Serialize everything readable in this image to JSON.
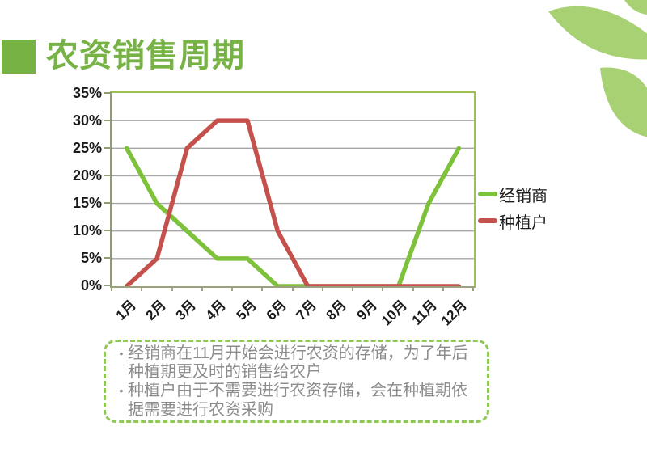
{
  "slide": {
    "title": "农资销售周期",
    "accent_green": "#76B344",
    "leaf_green": "#A8D173"
  },
  "chart_data": {
    "type": "line",
    "title": "",
    "xlabel": "",
    "ylabel": "",
    "categories": [
      "1月",
      "2月",
      "3月",
      "4月",
      "5月",
      "6月",
      "7月",
      "8月",
      "9月",
      "10月",
      "11月",
      "12月"
    ],
    "series": [
      {
        "name": "经销商",
        "color": "#7EC13B",
        "values": [
          25,
          15,
          10,
          5,
          5,
          0,
          0,
          0,
          0,
          0,
          15,
          25
        ]
      },
      {
        "name": "种植户",
        "color": "#C4514C",
        "values": [
          0,
          5,
          25,
          30,
          30,
          10,
          0,
          0,
          0,
          0,
          0,
          0
        ]
      }
    ],
    "ylim": [
      0,
      35
    ],
    "ytick_step": 5,
    "ytick_labels": [
      "0%",
      "5%",
      "10%",
      "15%",
      "20%",
      "25%",
      "30%",
      "35%"
    ],
    "grid": true,
    "gridline_color": "#A7A7A7",
    "legend_position": "right"
  },
  "notes": {
    "bullet": "•",
    "items": [
      "经销商在11月开始会进行农资的存储，为了年后种植期更及时的销售给农户",
      "种植户由于不需要进行农资存储，会在种植期依据需要进行农资采购"
    ]
  }
}
